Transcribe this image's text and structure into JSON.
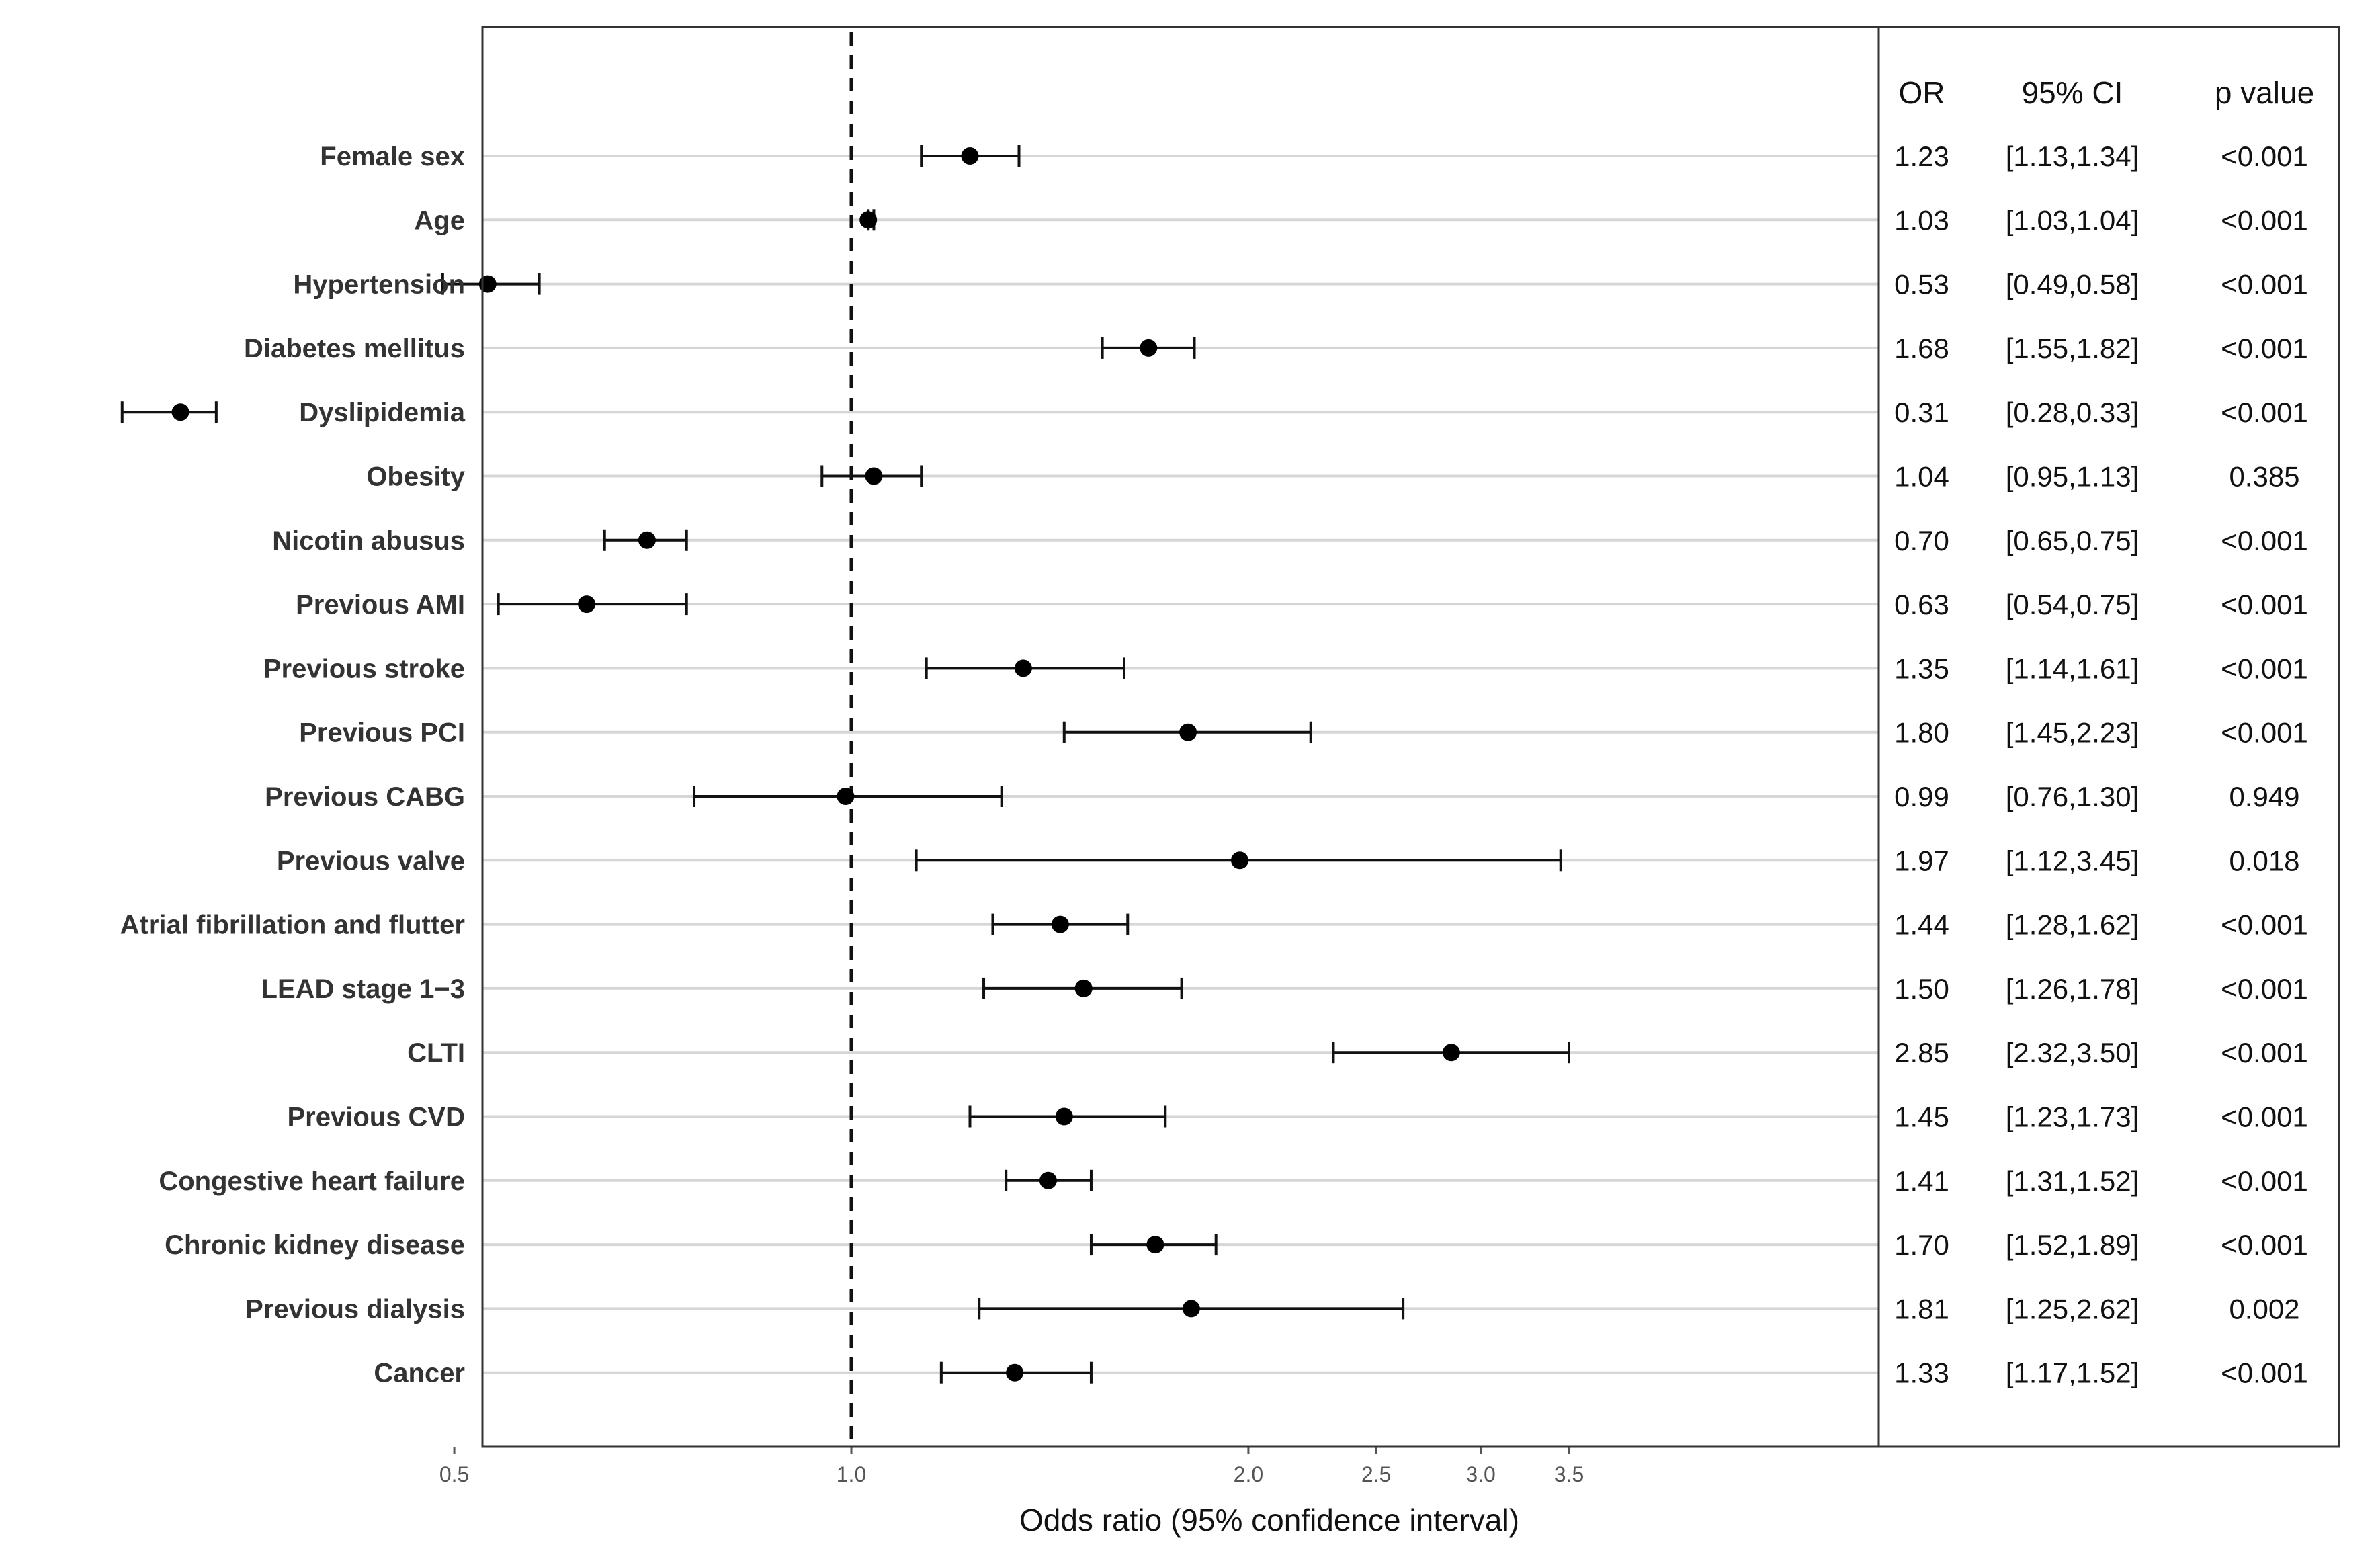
{
  "chart_data": {
    "type": "forest",
    "xlabel": "Odds ratio (95% confidence interval)",
    "xscale": "log",
    "xticks": [
      0.5,
      1.0,
      2.0,
      2.5,
      3.0,
      3.5
    ],
    "xtick_labels": [
      "0.5",
      "1.0",
      "2.0",
      "2.5",
      "3.0",
      "3.5"
    ],
    "reference_line": 1.0,
    "table_headers": {
      "or": "OR",
      "ci": "95% CI",
      "p": "p value"
    },
    "rows": [
      {
        "label": "Female sex",
        "or": 1.23,
        "lo": 1.13,
        "hi": 1.34,
        "or_text": "1.23",
        "ci_text": "[1.13,1.34]",
        "p_text": "<0.001"
      },
      {
        "label": "Age",
        "or": 1.03,
        "lo": 1.03,
        "hi": 1.04,
        "or_text": "1.03",
        "ci_text": "[1.03,1.04]",
        "p_text": "<0.001"
      },
      {
        "label": "Hypertension",
        "or": 0.53,
        "lo": 0.49,
        "hi": 0.58,
        "or_text": "0.53",
        "ci_text": "[0.49,0.58]",
        "p_text": "<0.001"
      },
      {
        "label": "Diabetes mellitus",
        "or": 1.68,
        "lo": 1.55,
        "hi": 1.82,
        "or_text": "1.68",
        "ci_text": "[1.55,1.82]",
        "p_text": "<0.001"
      },
      {
        "label": "Dyslipidemia",
        "or": 0.31,
        "lo": 0.28,
        "hi": 0.33,
        "or_text": "0.31",
        "ci_text": "[0.28,0.33]",
        "p_text": "<0.001"
      },
      {
        "label": "Obesity",
        "or": 1.04,
        "lo": 0.95,
        "hi": 1.13,
        "or_text": "1.04",
        "ci_text": "[0.95,1.13]",
        "p_text": "0.385"
      },
      {
        "label": "Nicotin abusus",
        "or": 0.7,
        "lo": 0.65,
        "hi": 0.75,
        "or_text": "0.70",
        "ci_text": "[0.65,0.75]",
        "p_text": "<0.001"
      },
      {
        "label": "Previous AMI",
        "or": 0.63,
        "lo": 0.54,
        "hi": 0.75,
        "or_text": "0.63",
        "ci_text": "[0.54,0.75]",
        "p_text": "<0.001"
      },
      {
        "label": "Previous stroke",
        "or": 1.35,
        "lo": 1.14,
        "hi": 1.61,
        "or_text": "1.35",
        "ci_text": "[1.14,1.61]",
        "p_text": "<0.001"
      },
      {
        "label": "Previous PCI",
        "or": 1.8,
        "lo": 1.45,
        "hi": 2.23,
        "or_text": "1.80",
        "ci_text": "[1.45,2.23]",
        "p_text": "<0.001"
      },
      {
        "label": "Previous CABG",
        "or": 0.99,
        "lo": 0.76,
        "hi": 1.3,
        "or_text": "0.99",
        "ci_text": "[0.76,1.30]",
        "p_text": "0.949"
      },
      {
        "label": "Previous valve",
        "or": 1.97,
        "lo": 1.12,
        "hi": 3.45,
        "or_text": "1.97",
        "ci_text": "[1.12,3.45]",
        "p_text": "0.018"
      },
      {
        "label": "Atrial fibrillation and flutter",
        "or": 1.44,
        "lo": 1.28,
        "hi": 1.62,
        "or_text": "1.44",
        "ci_text": "[1.28,1.62]",
        "p_text": "<0.001"
      },
      {
        "label": "LEAD stage 1−3",
        "or": 1.5,
        "lo": 1.26,
        "hi": 1.78,
        "or_text": "1.50",
        "ci_text": "[1.26,1.78]",
        "p_text": "<0.001"
      },
      {
        "label": "CLTI",
        "or": 2.85,
        "lo": 2.32,
        "hi": 3.5,
        "or_text": "2.85",
        "ci_text": "[2.32,3.50]",
        "p_text": "<0.001"
      },
      {
        "label": "Previous CVD",
        "or": 1.45,
        "lo": 1.23,
        "hi": 1.73,
        "or_text": "1.45",
        "ci_text": "[1.23,1.73]",
        "p_text": "<0.001"
      },
      {
        "label": "Congestive heart failure",
        "or": 1.41,
        "lo": 1.31,
        "hi": 1.52,
        "or_text": "1.41",
        "ci_text": "[1.31,1.52]",
        "p_text": "<0.001"
      },
      {
        "label": "Chronic kidney disease",
        "or": 1.7,
        "lo": 1.52,
        "hi": 1.89,
        "or_text": "1.70",
        "ci_text": "[1.52,1.89]",
        "p_text": "<0.001"
      },
      {
        "label": "Previous dialysis",
        "or": 1.81,
        "lo": 1.25,
        "hi": 2.62,
        "or_text": "1.81",
        "ci_text": "[1.25,2.62]",
        "p_text": "0.002"
      },
      {
        "label": "Cancer",
        "or": 1.33,
        "lo": 1.17,
        "hi": 1.52,
        "or_text": "1.33",
        "ci_text": "[1.17,1.52]",
        "p_text": "<0.001"
      }
    ]
  }
}
